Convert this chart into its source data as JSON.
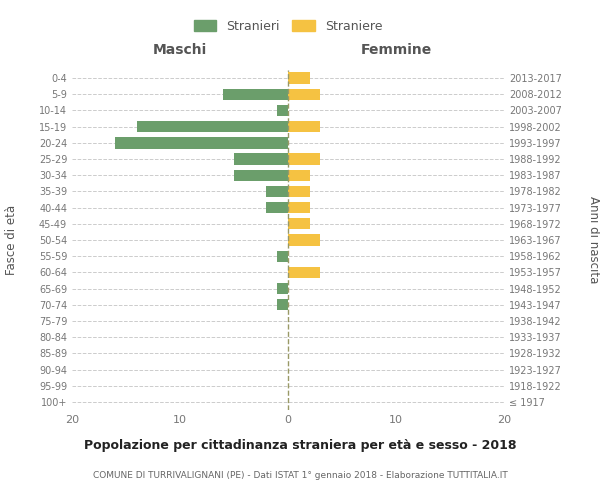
{
  "age_groups": [
    "100+",
    "95-99",
    "90-94",
    "85-89",
    "80-84",
    "75-79",
    "70-74",
    "65-69",
    "60-64",
    "55-59",
    "50-54",
    "45-49",
    "40-44",
    "35-39",
    "30-34",
    "25-29",
    "20-24",
    "15-19",
    "10-14",
    "5-9",
    "0-4"
  ],
  "birth_years": [
    "≤ 1917",
    "1918-1922",
    "1923-1927",
    "1928-1932",
    "1933-1937",
    "1938-1942",
    "1943-1947",
    "1948-1952",
    "1953-1957",
    "1958-1962",
    "1963-1967",
    "1968-1972",
    "1973-1977",
    "1978-1982",
    "1983-1987",
    "1988-1992",
    "1993-1997",
    "1998-2002",
    "2003-2007",
    "2008-2012",
    "2013-2017"
  ],
  "maschi": [
    0,
    0,
    0,
    0,
    0,
    0,
    1,
    1,
    0,
    1,
    0,
    0,
    2,
    2,
    5,
    5,
    16,
    14,
    1,
    6,
    0
  ],
  "femmine": [
    0,
    0,
    0,
    0,
    0,
    0,
    0,
    0,
    3,
    0,
    3,
    2,
    2,
    2,
    2,
    3,
    0,
    3,
    0,
    3,
    2
  ],
  "color_maschi": "#6b9e6b",
  "color_femmine": "#f5c242",
  "title": "Popolazione per cittadinanza straniera per età e sesso - 2018",
  "subtitle": "COMUNE DI TURRIVALIGNANI (PE) - Dati ISTAT 1° gennaio 2018 - Elaborazione TUTTITALIA.IT",
  "xlabel_left": "Maschi",
  "xlabel_right": "Femmine",
  "ylabel_left": "Fasce di età",
  "ylabel_right": "Anni di nascita",
  "legend_stranieri": "Stranieri",
  "legend_straniere": "Straniere",
  "xlim": 20,
  "background_color": "#ffffff",
  "grid_color": "#cccccc",
  "center_line_color": "#aaaaaa"
}
